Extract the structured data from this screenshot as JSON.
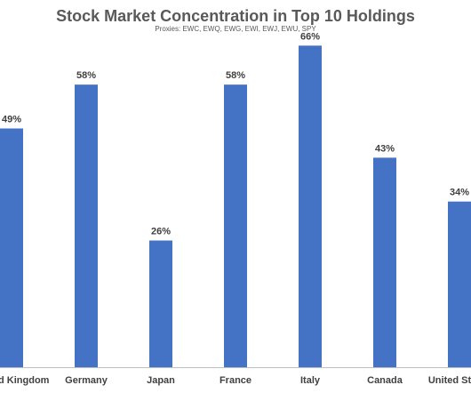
{
  "chart_data": {
    "type": "bar",
    "title": "Stock Market Concentration in Top 10 Holdings",
    "subtitle": "Proxies: EWC, EWQ, EWG, EWI, EWJ, EWU, SPY",
    "categories": [
      "United Kingdom",
      "Germany",
      "Japan",
      "France",
      "Italy",
      "Canada",
      "United States"
    ],
    "values": [
      49,
      58,
      26,
      58,
      66,
      43,
      34
    ],
    "value_labels": [
      "49%",
      "58%",
      "26%",
      "58%",
      "66%",
      "43%",
      "34%"
    ],
    "ylim": [
      0,
      72
    ],
    "grid": false,
    "legend": "none",
    "bar_color": "#4472C4",
    "axis_color": "#BFBFBF"
  }
}
